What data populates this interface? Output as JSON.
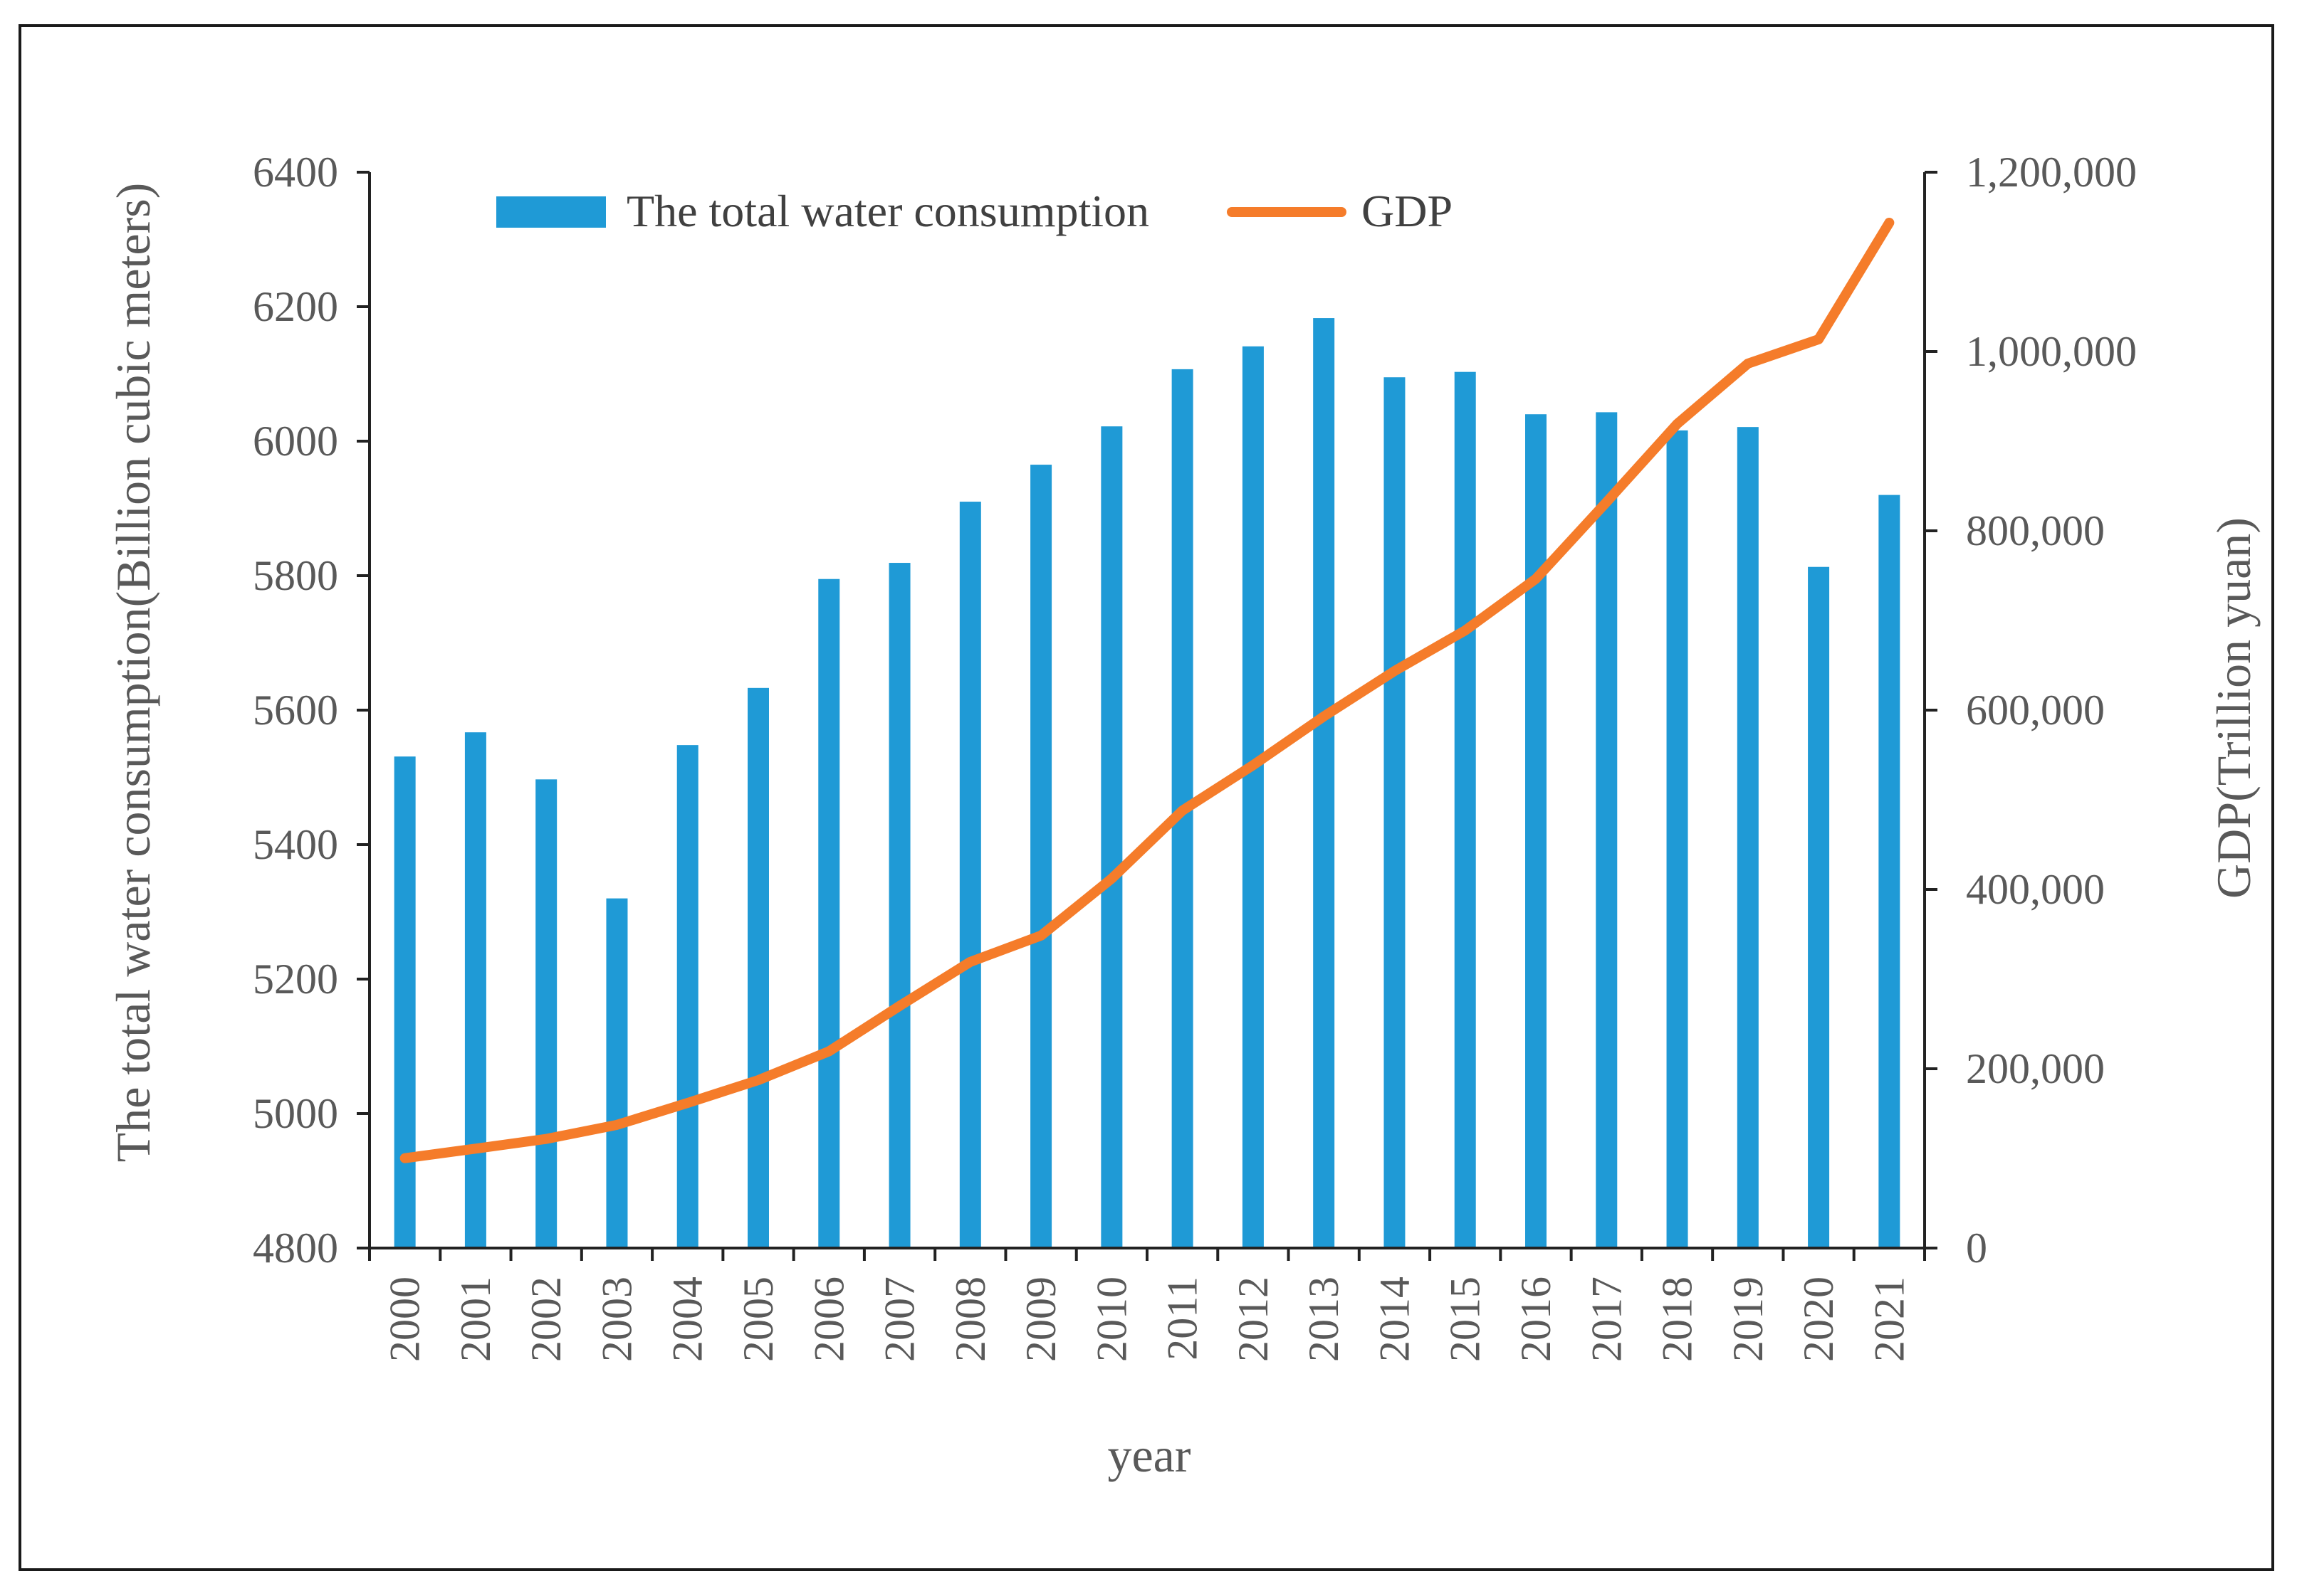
{
  "chart_data": {
    "type": "bar+line",
    "title": "",
    "xlabel": "year",
    "ylabel_left": "The total water consumption(Billion cubic meters)",
    "ylabel_right": "GDP(Trillion yuan)",
    "ylim_left": [
      4800,
      6400
    ],
    "ylim_right": [
      0,
      1200000
    ],
    "left_ticks": [
      "4800",
      "5000",
      "5200",
      "5400",
      "5600",
      "5800",
      "6000",
      "6200",
      "6400"
    ],
    "right_ticks": [
      "0",
      "200,000",
      "400,000",
      "600,000",
      "800,000",
      "1,000,000",
      "1,200,000"
    ],
    "categories": [
      "2000",
      "2001",
      "2002",
      "2003",
      "2004",
      "2005",
      "2006",
      "2007",
      "2008",
      "2009",
      "2010",
      "2011",
      "2012",
      "2013",
      "2014",
      "2015",
      "2016",
      "2017",
      "2018",
      "2019",
      "2020",
      "2021"
    ],
    "legend_position": "top",
    "series": [
      {
        "name": "The total water consumption",
        "type": "bar",
        "axis": "left",
        "color": "#1f9ad6",
        "values": [
          5531,
          5567,
          5497,
          5320,
          5548,
          5633,
          5795,
          5819,
          5910,
          5965,
          6022,
          6107,
          6141,
          6183,
          6095,
          6103,
          6040,
          6043,
          6016,
          6021,
          5813,
          5920
        ]
      },
      {
        "name": "GDP",
        "type": "line",
        "axis": "right",
        "color": "#f57c2a",
        "values": [
          100280,
          110863,
          121717,
          137422,
          161840,
          187319,
          219439,
          270092,
          319245,
          348518,
          412119,
          487940,
          538580,
          592963,
          643563,
          688858,
          746395,
          832036,
          919281,
          986515,
          1013567,
          1143670
        ]
      }
    ]
  }
}
